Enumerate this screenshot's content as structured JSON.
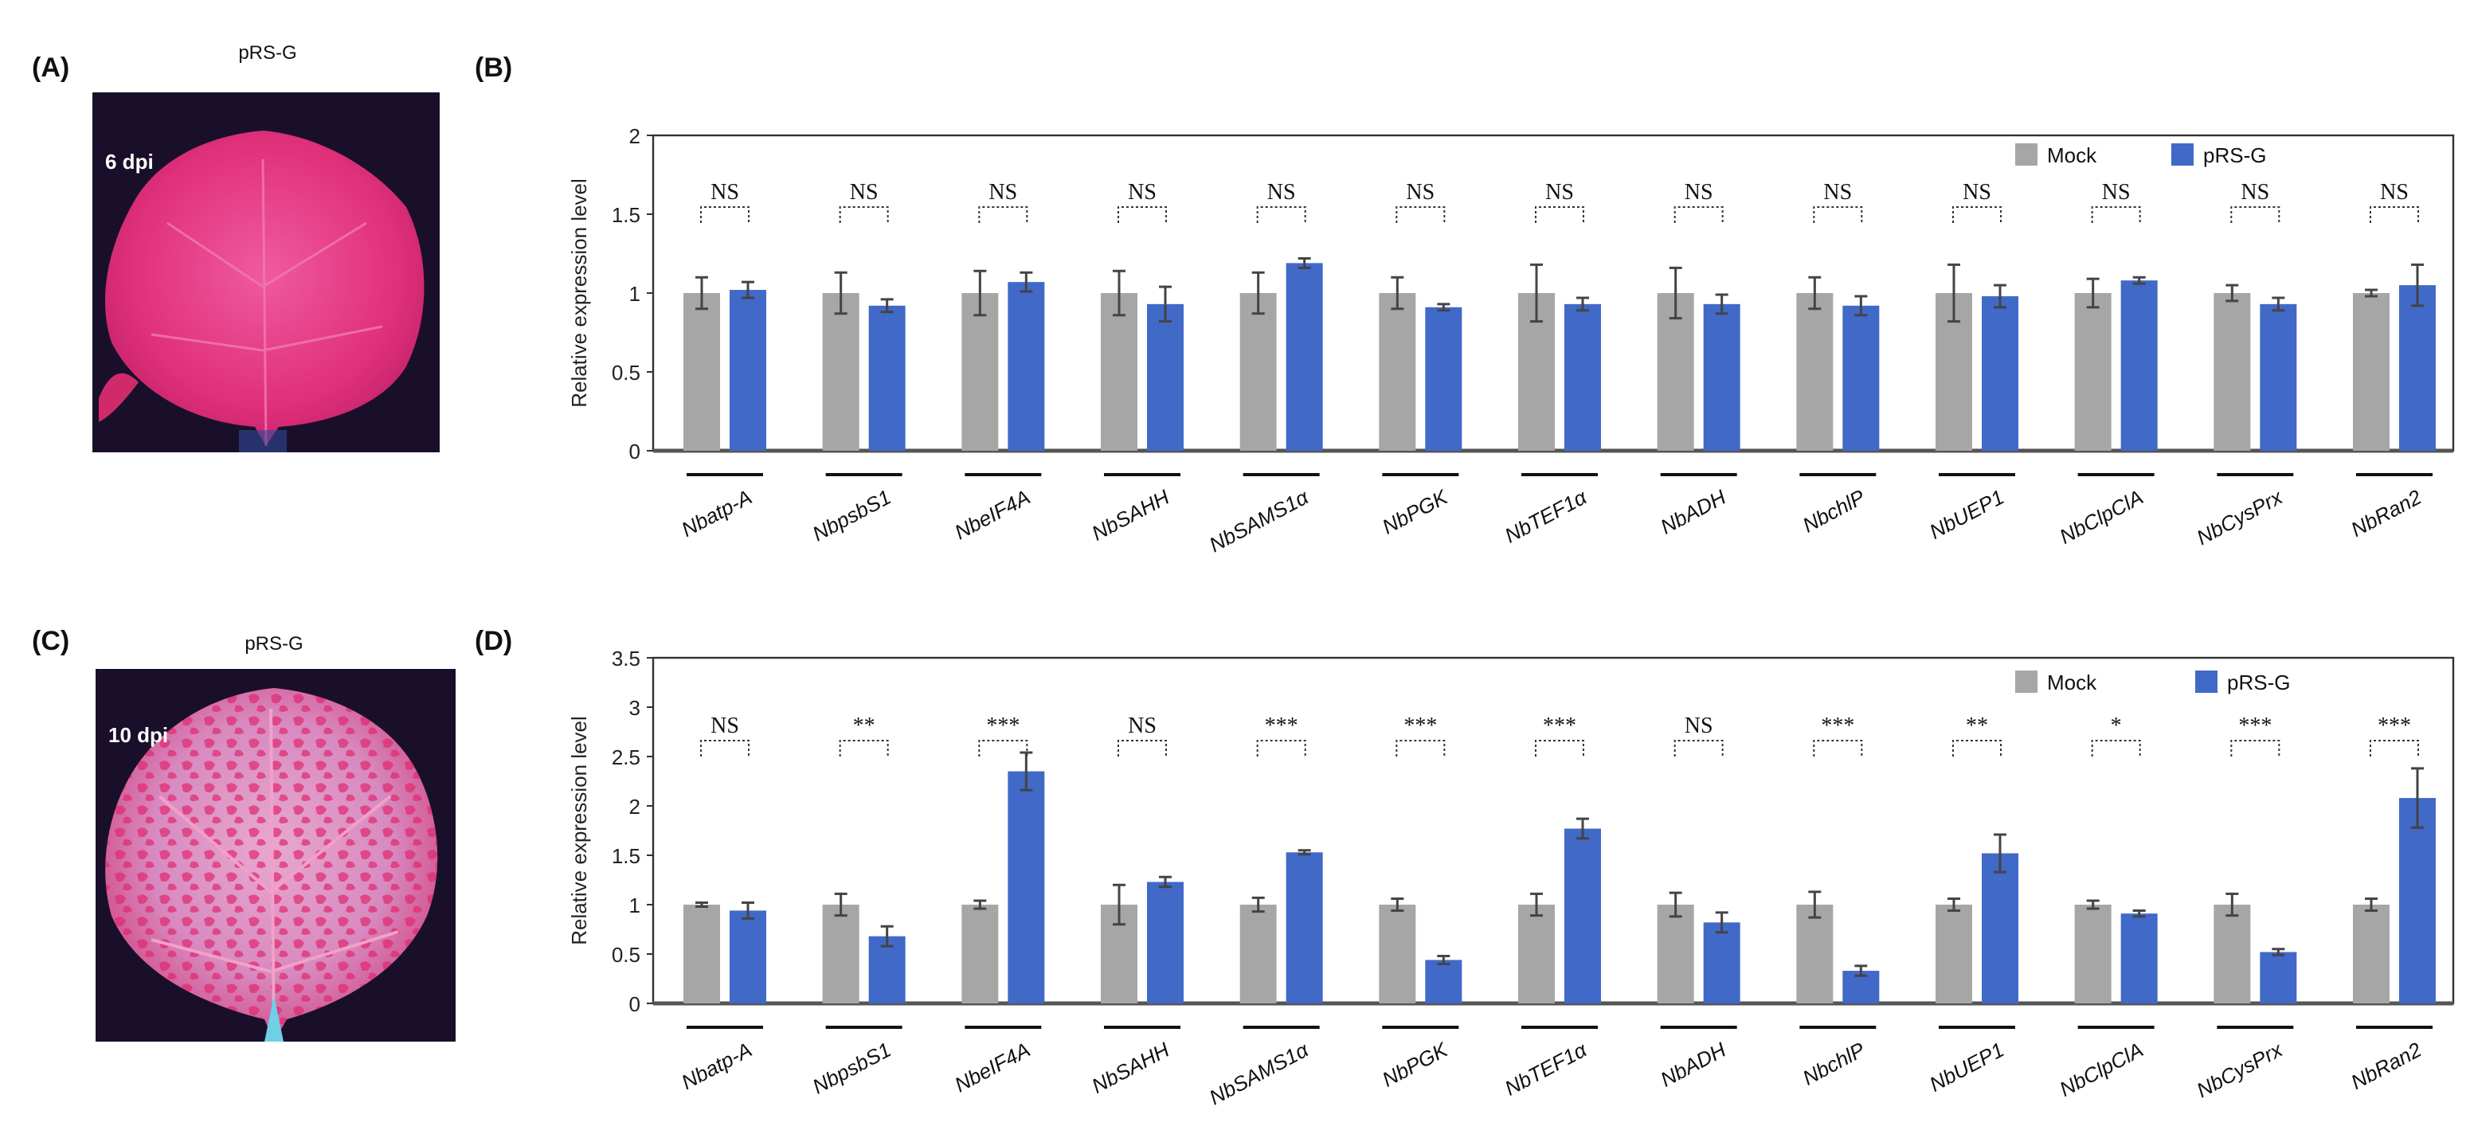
{
  "panels": {
    "A": {
      "letter": "(A)",
      "title": "pRS-G",
      "stage": "6 dpi"
    },
    "B": {
      "letter": "(B)"
    },
    "C": {
      "letter": "(C)",
      "title": "pRS-G",
      "stage": "10 dpi"
    },
    "D": {
      "letter": "(D)"
    }
  },
  "colors": {
    "mock": "#a6a6a6",
    "prsg": "#4169c8",
    "leaf_pink": "#e0307a",
    "background_dark": "#1a0f2a"
  },
  "chart_data": [
    {
      "panel": "B",
      "type": "bar",
      "ylabel": "Relative expression level",
      "ylim": [
        0,
        2
      ],
      "yticks": [
        "0",
        "0.5",
        "1",
        "1.5",
        "2"
      ],
      "legend": {
        "placement": "top-right",
        "entries": [
          "Mock",
          "pRS-G"
        ]
      },
      "categories": [
        "Nbatp-A",
        "NbpsbS1",
        "NbeIF4A",
        "NbSAHH",
        "NbSAMS1α",
        "NbPGK",
        "NbTEF1α",
        "NbADH",
        "NbchlP",
        "NbUEP1",
        "NbClpClA",
        "NbCysPrx",
        "NbRan2"
      ],
      "series": [
        {
          "name": "Mock",
          "values": [
            1,
            1,
            1,
            1,
            1,
            1,
            1,
            1,
            1,
            1,
            1,
            1,
            1
          ],
          "errors": [
            0.1,
            0.13,
            0.14,
            0.14,
            0.13,
            0.1,
            0.18,
            0.16,
            0.1,
            0.18,
            0.09,
            0.05,
            0.02
          ]
        },
        {
          "name": "pRS-G",
          "values": [
            1.02,
            0.92,
            1.07,
            0.93,
            1.19,
            0.91,
            0.93,
            0.93,
            0.92,
            0.98,
            1.08,
            0.93,
            1.05
          ],
          "errors": [
            0.05,
            0.04,
            0.06,
            0.11,
            0.03,
            0.02,
            0.04,
            0.06,
            0.06,
            0.07,
            0.02,
            0.04,
            0.13
          ]
        }
      ],
      "significance": [
        "NS",
        "NS",
        "NS",
        "NS",
        "NS",
        "NS",
        "NS",
        "NS",
        "NS",
        "NS",
        "NS",
        "NS",
        "NS"
      ],
      "grid": false
    },
    {
      "panel": "D",
      "type": "bar",
      "ylabel": "Relative expression level",
      "ylim": [
        0,
        3.5
      ],
      "yticks": [
        "0",
        "0.5",
        "1",
        "1.5",
        "2",
        "2.5",
        "3",
        "3.5"
      ],
      "legend": {
        "placement": "top-right",
        "entries": [
          "Mock",
          "pRS-G"
        ]
      },
      "categories": [
        "Nbatp-A",
        "NbpsbS1",
        "NbeIF4A",
        "NbSAHH",
        "NbSAMS1α",
        "NbPGK",
        "NbTEF1α",
        "NbADH",
        "NbchlP",
        "NbUEP1",
        "NbClpClA",
        "NbCysPrx",
        "NbRan2"
      ],
      "series": [
        {
          "name": "Mock",
          "values": [
            1,
            1,
            1,
            1,
            1,
            1,
            1,
            1,
            1,
            1,
            1,
            1,
            1
          ],
          "errors": [
            0.02,
            0.11,
            0.04,
            0.2,
            0.07,
            0.06,
            0.11,
            0.12,
            0.13,
            0.06,
            0.04,
            0.11,
            0.06
          ]
        },
        {
          "name": "pRS-G",
          "values": [
            0.94,
            0.68,
            2.35,
            1.23,
            1.53,
            0.44,
            1.77,
            0.82,
            0.33,
            1.52,
            0.91,
            0.52,
            2.08
          ],
          "errors": [
            0.08,
            0.1,
            0.19,
            0.05,
            0.02,
            0.04,
            0.1,
            0.1,
            0.05,
            0.19,
            0.03,
            0.03,
            0.3
          ]
        }
      ],
      "significance": [
        "NS",
        "**",
        "***",
        "NS",
        "***",
        "***",
        "***",
        "NS",
        "***",
        "**",
        "*",
        "***",
        "***"
      ],
      "grid": false
    }
  ]
}
